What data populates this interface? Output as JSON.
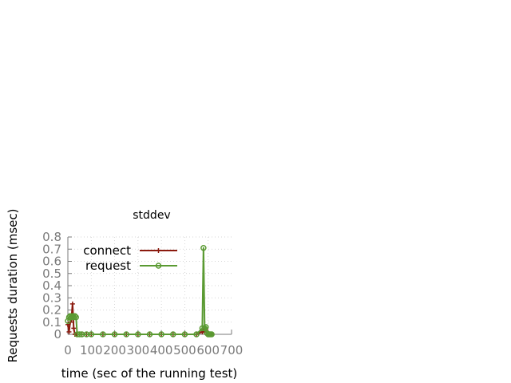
{
  "chart_data": {
    "type": "line",
    "title": "stddev",
    "xlabel": "time (sec of the running test)",
    "ylabel": "Requests duration (msec)",
    "xlim": [
      0,
      700
    ],
    "ylim": [
      0,
      0.8
    ],
    "xticks": [
      "0",
      "100",
      "200",
      "300",
      "400",
      "500",
      "600",
      "700"
    ],
    "yticks": [
      "0",
      "0.1",
      "0.2",
      "0.3",
      "0.4",
      "0.5",
      "0.6",
      "0.7",
      "0.8"
    ],
    "grid": true,
    "legend_position": "top-left",
    "series": [
      {
        "name": "connect",
        "color": "#8b1a0e",
        "marker": "plus",
        "x": [
          0,
          5,
          10,
          15,
          20,
          25,
          30,
          35,
          40,
          50,
          60,
          80,
          100,
          150,
          200,
          250,
          300,
          350,
          400,
          450,
          500,
          550,
          575,
          580,
          585,
          590,
          595,
          600,
          605,
          610,
          615
        ],
        "y": [
          0.08,
          0.02,
          0.1,
          0.12,
          0.25,
          0.05,
          0.0,
          0.0,
          0.0,
          0.0,
          0.0,
          0.0,
          0.0,
          0.0,
          0.0,
          0.0,
          0.0,
          0.0,
          0.0,
          0.0,
          0.0,
          0.0,
          0.02,
          0.03,
          0.02,
          0.04,
          0.0,
          0.0,
          0.0,
          0.0,
          0.0
        ]
      },
      {
        "name": "request",
        "color": "#5a9a32",
        "marker": "circle",
        "x": [
          0,
          5,
          10,
          15,
          20,
          25,
          30,
          35,
          40,
          50,
          60,
          80,
          100,
          150,
          200,
          250,
          300,
          350,
          400,
          450,
          500,
          550,
          575,
          580,
          585,
          590,
          595,
          600,
          605,
          610,
          615
        ],
        "y": [
          0.11,
          0.14,
          0.15,
          0.14,
          0.15,
          0.14,
          0.15,
          0.14,
          0.0,
          0.0,
          0.0,
          0.0,
          0.0,
          0.0,
          0.0,
          0.0,
          0.0,
          0.0,
          0.0,
          0.0,
          0.0,
          0.0,
          0.05,
          0.71,
          0.05,
          0.06,
          0.01,
          0.0,
          0.0,
          0.0,
          0.0
        ]
      }
    ]
  }
}
